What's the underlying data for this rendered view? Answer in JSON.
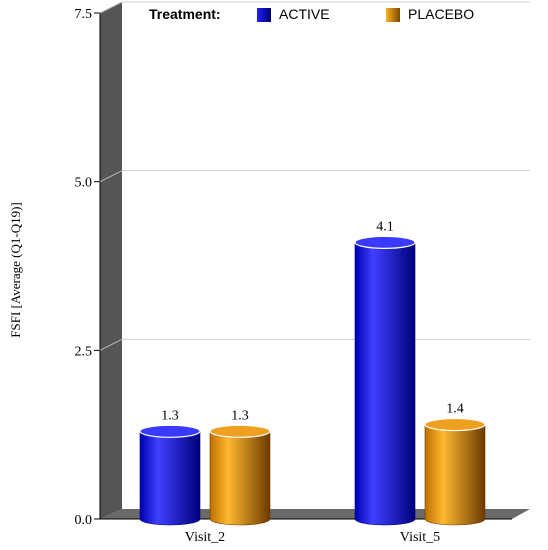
{
  "chart_data": {
    "type": "bar",
    "style": "3d-cylinder",
    "categories": [
      "Visit_2",
      "Visit_5"
    ],
    "series": [
      {
        "name": "ACTIVE",
        "values": [
          1.3,
          4.1
        ],
        "color": "#1a1ad4"
      },
      {
        "name": "PLACEBO",
        "values": [
          1.3,
          1.4
        ],
        "color": "#e0900a"
      }
    ],
    "data_labels": [
      [
        "1.3",
        "4.1"
      ],
      [
        "1.3",
        "1.4"
      ]
    ],
    "ylabel": "FSFI [Average (Q1-Q19)]",
    "xlabel": "",
    "ylim": [
      0,
      7.5
    ],
    "yticks": [
      "0.0",
      "2.5",
      "5.0",
      "7.5"
    ],
    "legend_title": "Treatment:",
    "legend_position": "top",
    "grid": true
  },
  "colors": {
    "wall": "#555555",
    "floor": "#6e6e6e",
    "grid": "#cccccc",
    "active_light": "#4a4aff",
    "active_dark": "#00008a",
    "placebo_light": "#ffbf40",
    "placebo_dark": "#7a4a00"
  }
}
